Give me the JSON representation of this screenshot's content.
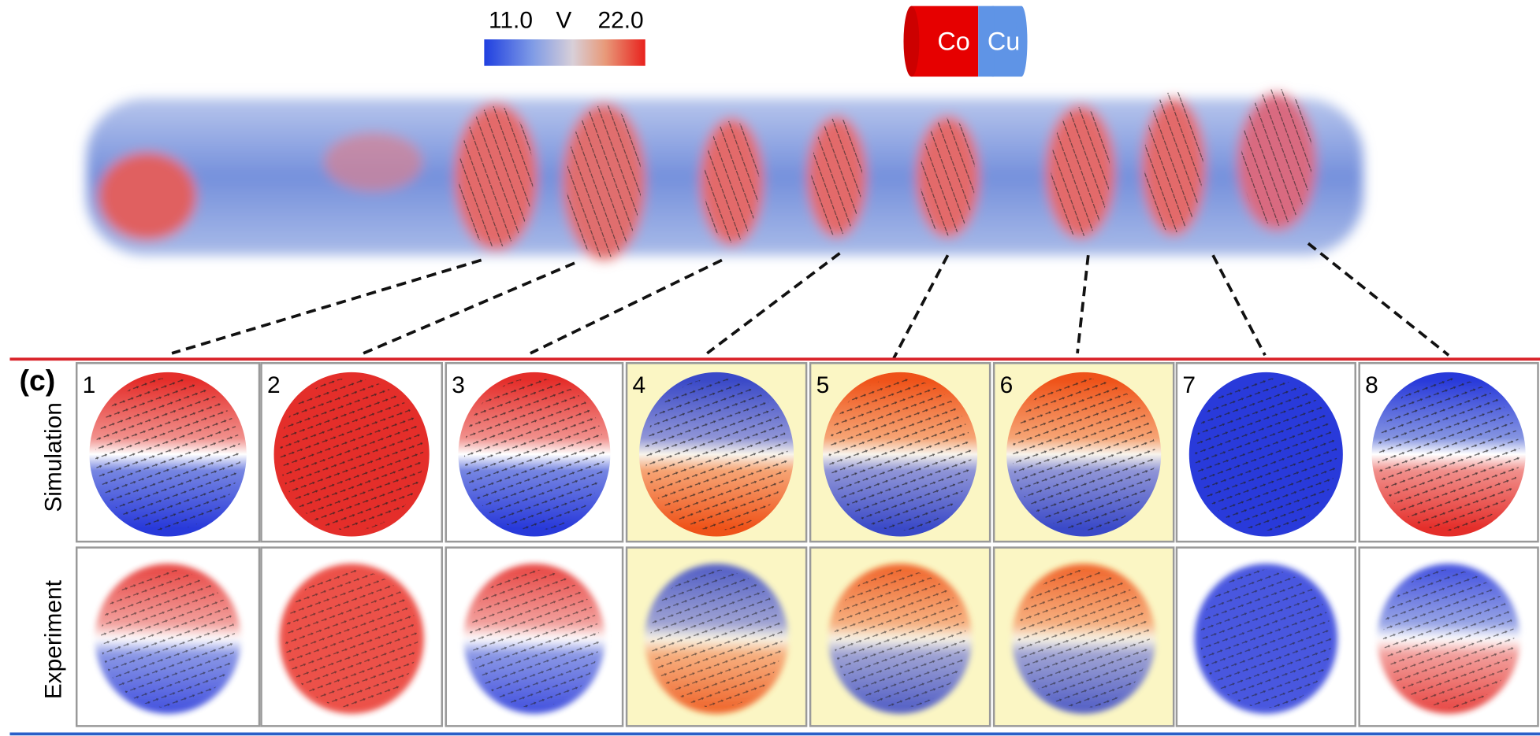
{
  "colorbar": {
    "min": "11.0",
    "unit": "V",
    "max": "22.0"
  },
  "legend": {
    "left": "Co",
    "right": "Cu"
  },
  "panel_label": "(c)",
  "rows": [
    "Simulation",
    "Experiment"
  ],
  "panels": [
    {
      "label": "1",
      "highlight": false
    },
    {
      "label": "2",
      "highlight": false
    },
    {
      "label": "3",
      "highlight": false
    },
    {
      "label": "4",
      "highlight": true
    },
    {
      "label": "5",
      "highlight": true
    },
    {
      "label": "6",
      "highlight": true
    },
    {
      "label": "7",
      "highlight": false
    },
    {
      "label": "8",
      "highlight": false
    }
  ]
}
